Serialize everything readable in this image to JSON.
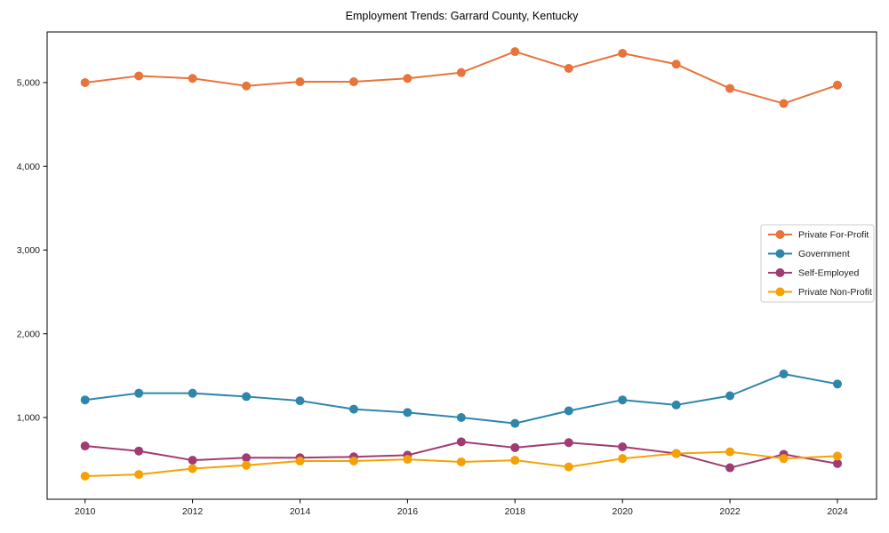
{
  "chart_data": {
    "type": "line",
    "title": "Employment Trends: Garrard County, Kentucky",
    "x": [
      2010,
      2011,
      2012,
      2013,
      2014,
      2015,
      2016,
      2017,
      2018,
      2019,
      2020,
      2021,
      2022,
      2023,
      2024
    ],
    "series": [
      {
        "name": "Private For-Profit",
        "color": "#E8743B",
        "values": [
          5000,
          5080,
          5050,
          4960,
          5010,
          5010,
          5050,
          5120,
          5370,
          5170,
          5350,
          5220,
          4930,
          4750,
          4970
        ]
      },
      {
        "name": "Government",
        "color": "#2E86AB",
        "values": [
          1210,
          1290,
          1290,
          1250,
          1200,
          1100,
          1060,
          1000,
          930,
          1080,
          1210,
          1150,
          1260,
          1520,
          1400
        ]
      },
      {
        "name": "Self-Employed",
        "color": "#A23B72",
        "values": [
          660,
          600,
          490,
          520,
          520,
          530,
          550,
          710,
          640,
          700,
          650,
          570,
          400,
          560,
          450
        ]
      },
      {
        "name": "Private Non-Profit",
        "color": "#F5A104",
        "values": [
          300,
          320,
          390,
          430,
          480,
          480,
          500,
          470,
          490,
          410,
          510,
          570,
          590,
          510,
          540
        ]
      }
    ],
    "xticks": [
      2010,
      2012,
      2014,
      2016,
      2018,
      2020,
      2022,
      2024
    ],
    "yticks": [
      1000,
      2000,
      3000,
      4000,
      5000
    ],
    "ytick_labels": [
      "1,000",
      "2,000",
      "3,000",
      "4,000",
      "5,000"
    ],
    "xlim": [
      2009.3,
      2024.73
    ],
    "ylim": [
      20,
      5620
    ],
    "grid": false,
    "legend_position": "center right",
    "axis_color": "#000000",
    "text_color": "#1a1a1a",
    "background_color": "#ffffff"
  }
}
